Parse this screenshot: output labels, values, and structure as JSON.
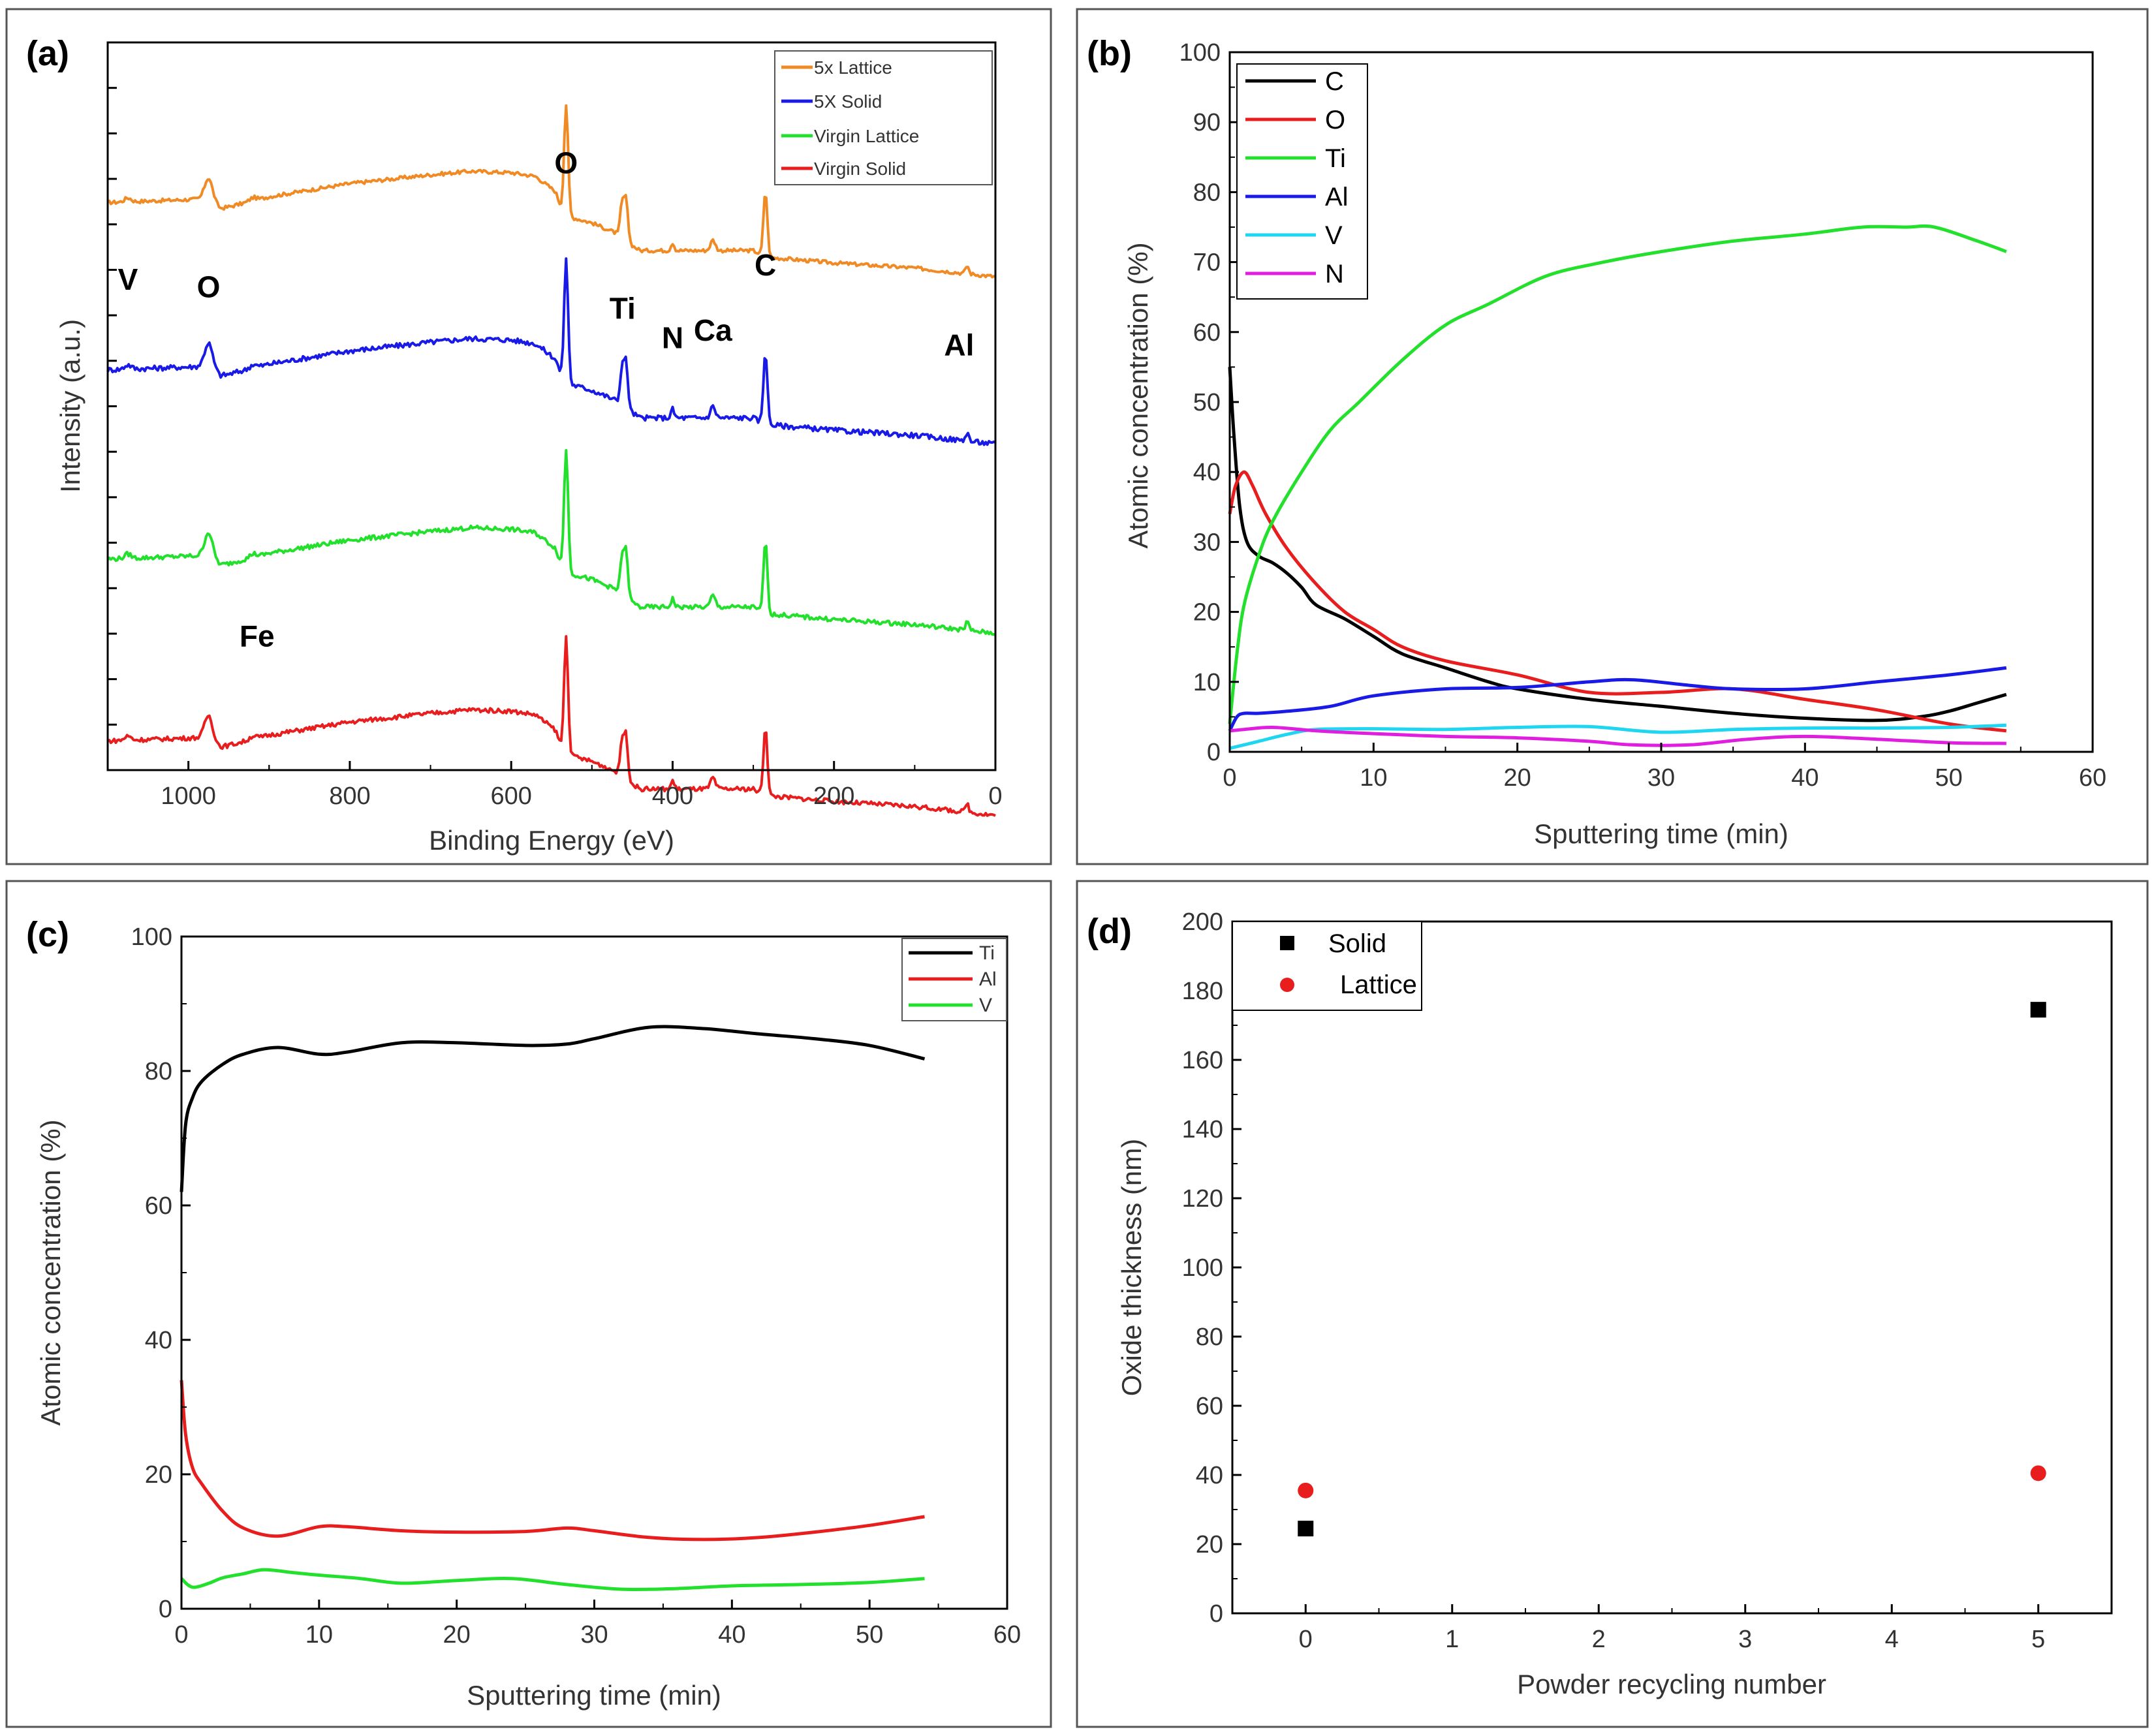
{
  "chart_data": [
    {
      "id": "a",
      "panel_label": "(a)",
      "type": "line",
      "title": "",
      "xlabel": "Binding Energy (eV)",
      "ylabel": "Intensity (a.u.)",
      "xlim": [
        1100,
        0
      ],
      "xticks": [
        "1000",
        "800",
        "600",
        "400",
        "200",
        "0"
      ],
      "yticks_labeled": false,
      "series": [
        {
          "name": "5x Lattice",
          "color": "#F08A24",
          "offset": 78,
          "noise": 0.25,
          "scale": 0.9
        },
        {
          "name": "5X Solid",
          "color": "#1A1AE6",
          "offset": 55,
          "noise": 0.35,
          "scale": 1.0
        },
        {
          "name": "Virgin Lattice",
          "color": "#22E02C",
          "offset": 29,
          "noise": 0.3,
          "scale": 1.0
        },
        {
          "name": "Virgin Solid",
          "color": "#E81E1E",
          "offset": 4,
          "noise": 0.3,
          "scale": 0.95
        }
      ],
      "peak_annotations": [
        {
          "text": "V",
          "x": 1075,
          "y": 66
        },
        {
          "text": "O",
          "x": 975,
          "y": 65
        },
        {
          "text": "O",
          "x": 532,
          "y": 82
        },
        {
          "text": "Ti",
          "x": 462,
          "y": 62
        },
        {
          "text": "N",
          "x": 400,
          "y": 58
        },
        {
          "text": "Ca",
          "x": 350,
          "y": 59
        },
        {
          "text": "C",
          "x": 285,
          "y": 68
        },
        {
          "text": "Al",
          "x": 45,
          "y": 57
        },
        {
          "text": "Fe",
          "x": 915,
          "y": 17
        }
      ]
    },
    {
      "id": "b",
      "panel_label": "(b)",
      "type": "line",
      "xlabel": "Sputtering time (min)",
      "ylabel": "Atomic concentration (%)",
      "xlim": [
        0,
        60
      ],
      "ylim": [
        0,
        100
      ],
      "xticks": [
        "0",
        "10",
        "20",
        "30",
        "40",
        "50",
        "60"
      ],
      "yticks": [
        "0",
        "10",
        "20",
        "30",
        "40",
        "50",
        "60",
        "70",
        "80",
        "90",
        "100"
      ],
      "series": [
        {
          "name": "C",
          "color": "#000000",
          "x": [
            0,
            0.3,
            0.7,
            1.2,
            2,
            3,
            4,
            5,
            6,
            8,
            10,
            12,
            15,
            18,
            20,
            25,
            30,
            35,
            40,
            45,
            48,
            50,
            52,
            54
          ],
          "y": [
            55,
            45,
            35,
            30,
            28,
            27,
            25.5,
            23.5,
            21,
            19,
            16.5,
            14,
            12,
            10,
            9,
            7.5,
            6.5,
            5.5,
            4.8,
            4.5,
            5,
            5.8,
            7,
            8.2
          ]
        },
        {
          "name": "O",
          "color": "#E81E1E",
          "x": [
            0,
            0.4,
            1,
            1.6,
            2.5,
            4,
            6,
            8,
            10,
            12,
            15,
            20,
            25,
            30,
            35,
            40,
            45,
            50,
            54
          ],
          "y": [
            34,
            38,
            40,
            38,
            34,
            29,
            24,
            20,
            17.5,
            15,
            13,
            11,
            8.5,
            8.5,
            9,
            7.5,
            6,
            4,
            3
          ]
        },
        {
          "name": "Ti",
          "color": "#22E02C",
          "x": [
            0,
            0.5,
            1,
            2,
            3,
            5,
            7,
            9,
            12,
            15,
            18,
            22,
            26,
            30,
            35,
            40,
            44,
            47,
            49,
            52,
            54
          ],
          "y": [
            4,
            14,
            21,
            28,
            33,
            40,
            46,
            50,
            56,
            61,
            64,
            68,
            70,
            71.5,
            73,
            74,
            75,
            75,
            75,
            73,
            71.5
          ]
        },
        {
          "name": "Al",
          "color": "#1A1AE6",
          "x": [
            0,
            0.5,
            1,
            2,
            4,
            7,
            10,
            15,
            20,
            25,
            28,
            32,
            35,
            40,
            45,
            50,
            54
          ],
          "y": [
            3,
            5,
            5.5,
            5.5,
            5.8,
            6.5,
            8,
            9,
            9.2,
            10,
            10.3,
            9.5,
            9,
            9,
            10,
            11,
            12
          ]
        },
        {
          "name": "V",
          "color": "#1ED6F0",
          "x": [
            0,
            2,
            4,
            6,
            10,
            15,
            20,
            25,
            30,
            35,
            40,
            45,
            50,
            54
          ],
          "y": [
            0.5,
            1.5,
            2.5,
            3.2,
            3.3,
            3.2,
            3.5,
            3.6,
            2.8,
            3.2,
            3.4,
            3.4,
            3.5,
            3.8
          ]
        },
        {
          "name": "N",
          "color": "#E01EE0",
          "x": [
            0,
            1,
            3,
            6,
            10,
            15,
            20,
            25,
            28,
            32,
            36,
            40,
            45,
            50,
            54
          ],
          "y": [
            3,
            3.2,
            3.5,
            3,
            2.6,
            2.2,
            2,
            1.5,
            1,
            1,
            1.8,
            2.2,
            1.8,
            1.3,
            1.2
          ]
        }
      ]
    },
    {
      "id": "c",
      "panel_label": "(c)",
      "type": "line",
      "xlabel": "Sputtering time (min)",
      "ylabel": "Atomic concentration (%)",
      "xlim": [
        0,
        60
      ],
      "ylim": [
        0,
        100
      ],
      "xticks": [
        "0",
        "10",
        "20",
        "30",
        "40",
        "50",
        "60"
      ],
      "yticks": [
        "0",
        "20",
        "40",
        "60",
        "80",
        "100"
      ],
      "series": [
        {
          "name": "Ti",
          "color": "#000000",
          "x": [
            0,
            0.3,
            0.8,
            1.5,
            3,
            4.5,
            7,
            10,
            12,
            16,
            20,
            25,
            28,
            30,
            34,
            38,
            42,
            46,
            50,
            54
          ],
          "y": [
            62,
            72,
            76,
            78.5,
            81,
            82.5,
            83.5,
            82.5,
            82.8,
            84.2,
            84.2,
            83.8,
            84,
            84.8,
            86.5,
            86.3,
            85.5,
            84.8,
            83.8,
            81.8
          ]
        },
        {
          "name": "Al",
          "color": "#E81E1E",
          "x": [
            0,
            0.3,
            0.8,
            1.5,
            3,
            4.5,
            7,
            10,
            12,
            16,
            20,
            25,
            28,
            30,
            34,
            38,
            42,
            46,
            50,
            54
          ],
          "y": [
            34,
            26,
            21,
            18.5,
            14.5,
            12,
            10.8,
            12.2,
            12.2,
            11.6,
            11.4,
            11.5,
            12,
            11.6,
            10.6,
            10.3,
            10.6,
            11.4,
            12.4,
            13.7
          ]
        },
        {
          "name": "V",
          "color": "#22E02C",
          "x": [
            0,
            0.5,
            1,
            2,
            3,
            4.5,
            6,
            8,
            10,
            13,
            16,
            20,
            24,
            28,
            32,
            36,
            40,
            45,
            50,
            54
          ],
          "y": [
            4.5,
            3.5,
            3.2,
            3.8,
            4.6,
            5.2,
            5.8,
            5.4,
            5,
            4.5,
            3.8,
            4.2,
            4.5,
            3.6,
            2.9,
            3,
            3.4,
            3.6,
            3.9,
            4.5
          ]
        }
      ]
    },
    {
      "id": "d",
      "panel_label": "(d)",
      "type": "scatter",
      "xlabel": "Powder recycling number",
      "ylabel": "Oxide thickness (nm)",
      "xlim": [
        -0.5,
        5.5
      ],
      "ylim": [
        0,
        200
      ],
      "xticks": [
        "0",
        "1",
        "2",
        "3",
        "4",
        "5"
      ],
      "yticks": [
        "0",
        "20",
        "40",
        "60",
        "80",
        "100",
        "120",
        "140",
        "160",
        "180",
        "200"
      ],
      "series": [
        {
          "name": "Solid",
          "color": "#000000",
          "marker": "square",
          "x": [
            0,
            5
          ],
          "y": [
            24.5,
            174.5
          ]
        },
        {
          "name": "Lattice",
          "color": "#E81E1E",
          "marker": "circle",
          "x": [
            0,
            5
          ],
          "y": [
            35.5,
            40.5
          ]
        }
      ]
    }
  ]
}
